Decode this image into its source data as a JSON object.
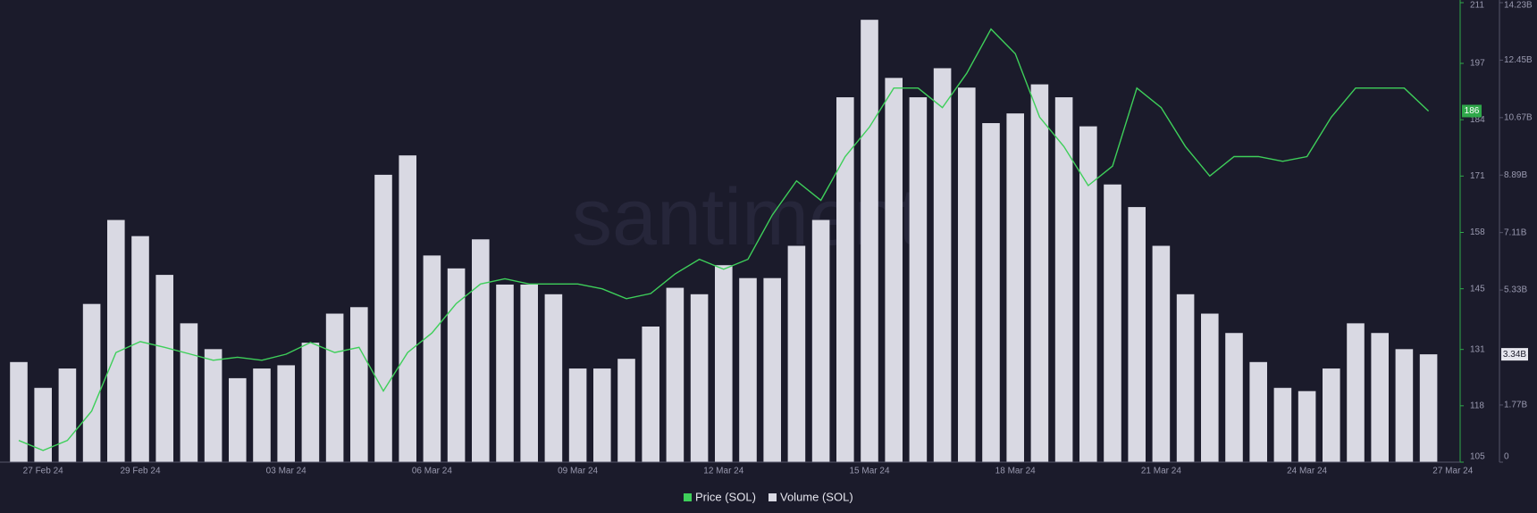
{
  "chart_data": {
    "type": "bar-line",
    "watermark": "santiment",
    "categories": [
      null,
      "27 Feb 24",
      null,
      null,
      null,
      "29 Feb 24",
      null,
      null,
      null,
      null,
      null,
      "03 Mar 24",
      null,
      null,
      null,
      null,
      null,
      "06 Mar 24",
      null,
      null,
      null,
      null,
      null,
      "09 Mar 24",
      null,
      null,
      null,
      null,
      null,
      "12 Mar 24",
      null,
      null,
      null,
      null,
      null,
      "15 Mar 24",
      null,
      null,
      null,
      null,
      null,
      "18 Mar 24",
      null,
      null,
      null,
      null,
      null,
      "21 Mar 24",
      null,
      null,
      null,
      null,
      null,
      "24 Mar 24",
      null,
      null,
      null,
      null,
      null,
      "27 Mar 24"
    ],
    "series": [
      {
        "name": "Volume (SOL)",
        "color": "#d9d9e3",
        "kind": "bar",
        "axis": "y2",
        "values": [
          3100000000,
          2300000000,
          2900000000,
          4900000000,
          7500000000,
          7000000000,
          5800000000,
          4300000000,
          3500000000,
          2600000000,
          2900000000,
          3000000000,
          3700000000,
          4600000000,
          4800000000,
          8900000000,
          9500000000,
          6400000000,
          6000000000,
          6900000000,
          5500000000,
          5500000000,
          5200000000,
          2900000000,
          2900000000,
          3200000000,
          4200000000,
          5400000000,
          5200000000,
          6100000000,
          5700000000,
          5700000000,
          6700000000,
          7500000000,
          11300000000,
          13700000000,
          11900000000,
          11300000000,
          12200000000,
          11600000000,
          10500000000,
          10800000000,
          11700000000,
          11300000000,
          10400000000,
          8600000000,
          7900000000,
          6700000000,
          5200000000,
          4600000000,
          4000000000,
          3100000000,
          2300000000,
          2200000000,
          2900000000,
          4300000000,
          4000000000,
          3500000000,
          3340000000,
          null
        ]
      },
      {
        "name": "Price (SOL)",
        "color": "#3ecf5a",
        "kind": "line",
        "axis": "y",
        "values": [
          110,
          107.7,
          110,
          116.8,
          130.3,
          132.8,
          131.5,
          130,
          128.5,
          129.2,
          128.5,
          129.9,
          132.6,
          130.3,
          131.5,
          121.4,
          130.3,
          134.8,
          141.6,
          146.1,
          147.3,
          146.1,
          146.1,
          146.1,
          145,
          142.7,
          143.9,
          148.4,
          151.8,
          149.5,
          151.8,
          162,
          169.9,
          165.4,
          175.5,
          182.3,
          191.3,
          191.3,
          186.8,
          194.7,
          204.9,
          199.2,
          184.6,
          177.8,
          168.8,
          173.3,
          191.3,
          186.8,
          177.8,
          171,
          175.5,
          175.5,
          174.4,
          175.5,
          184.6,
          191.3,
          191.3,
          191.3,
          186,
          null
        ]
      }
    ],
    "ylim": [
      105,
      211
    ],
    "yticks": [
      105,
      118,
      131,
      145,
      158,
      171,
      184,
      197,
      211
    ],
    "y2lim": [
      0,
      14230000000
    ],
    "y2ticks": [
      {
        "value": 0,
        "label": "0"
      },
      {
        "value": 1770000000,
        "label": "1.77B"
      },
      {
        "value": 5330000000,
        "label": "5.33B"
      },
      {
        "value": 7110000000,
        "label": "7.11B"
      },
      {
        "value": 8890000000,
        "label": "8.89B"
      },
      {
        "value": 10670000000,
        "label": "10.67B"
      },
      {
        "value": 12450000000,
        "label": "12.45B"
      },
      {
        "value": 14230000000,
        "label": "14.23B"
      }
    ],
    "price_badge": "186",
    "volume_badge": "3.34B"
  }
}
